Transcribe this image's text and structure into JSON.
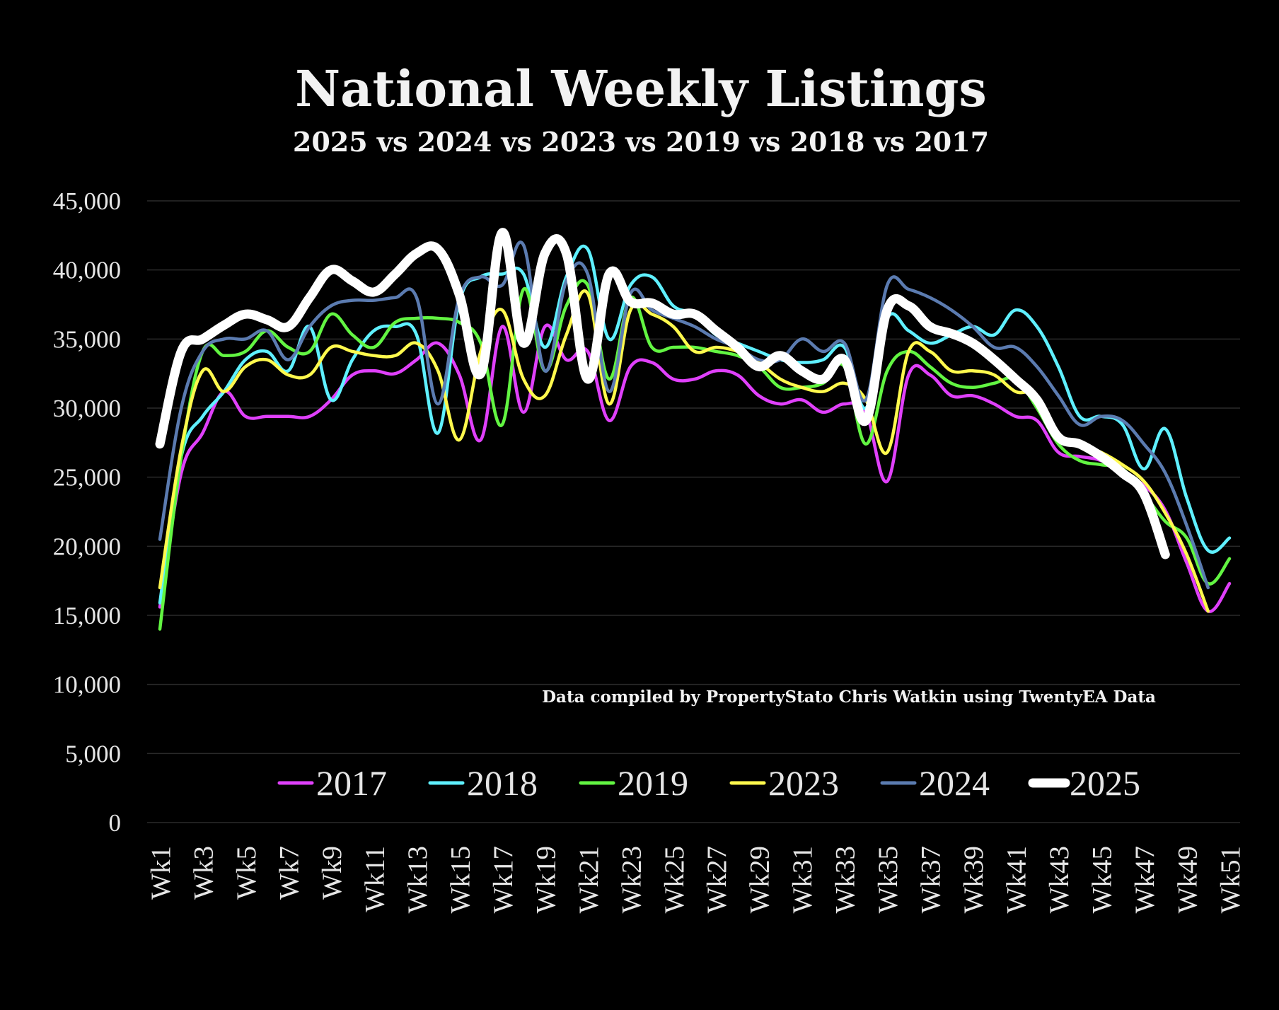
{
  "chart_data": {
    "type": "line",
    "title": "National Weekly Listings",
    "subtitle": "2025 vs 2024 vs 2023 vs 2019 vs 2018 vs 2017",
    "annotation": "Data compiled by PropertyStato Chris Watkin using TwentyEA Data",
    "categories": [
      "Wk1",
      null,
      "Wk3",
      null,
      "Wk5",
      null,
      "Wk7",
      null,
      "Wk9",
      null,
      "Wk11",
      null,
      "Wk13",
      null,
      "Wk15",
      null,
      "Wk17",
      null,
      "Wk19",
      null,
      "Wk21",
      null,
      "Wk23",
      null,
      "Wk25",
      null,
      "Wk27",
      null,
      "Wk29",
      null,
      "Wk31",
      null,
      "Wk33",
      null,
      "Wk35",
      null,
      "Wk37",
      null,
      "Wk39",
      null,
      "Wk41",
      null,
      "Wk43",
      null,
      "Wk45",
      null,
      "Wk47",
      null,
      "Wk49",
      null,
      "Wk51"
    ],
    "ylim": [
      0,
      45000
    ],
    "yticks": [
      0,
      {
        "value": 5000,
        "label": "5,000"
      },
      {
        "value": 10000,
        "label": "10,000"
      },
      {
        "value": 15000,
        "label": "15,000"
      },
      {
        "value": 20000,
        "label": "20,000"
      },
      {
        "value": 25000,
        "label": "25,000"
      },
      {
        "value": 30000,
        "label": "30,000"
      },
      {
        "value": 35000,
        "label": "35,000"
      },
      {
        "value": 40000,
        "label": "40,000"
      },
      {
        "value": 45000,
        "label": "45,000"
      }
    ],
    "grid": true,
    "legend": "bottom",
    "series": [
      {
        "name": "2017",
        "color": "#e040fb",
        "values": [
          15600,
          25300,
          28200,
          31200,
          29400,
          29400,
          29400,
          29400,
          30600,
          32400,
          32700,
          32500,
          33500,
          34700,
          32400,
          27700,
          35900,
          29700,
          35900,
          33500,
          34100,
          29100,
          33000,
          33300,
          32100,
          32100,
          32700,
          32400,
          30900,
          30300,
          30600,
          29700,
          30300,
          29700,
          24700,
          32400,
          32400,
          30900,
          30900,
          30300,
          29400,
          29100,
          26800,
          26500,
          26200,
          25300,
          24400,
          22600,
          18800,
          15300,
          17300
        ]
      },
      {
        "name": "2018",
        "color": "#5ff0ff",
        "values": [
          15900,
          26500,
          29400,
          31200,
          33500,
          34100,
          32700,
          35900,
          30600,
          33500,
          35600,
          35900,
          35300,
          28200,
          37700,
          39500,
          39700,
          39700,
          34400,
          39500,
          41500,
          35000,
          38900,
          39500,
          37400,
          36800,
          35300,
          34700,
          34100,
          33500,
          33300,
          33500,
          34400,
          30000,
          36500,
          35600,
          34700,
          35300,
          35900,
          35300,
          37100,
          35900,
          33000,
          29400,
          29400,
          28800,
          25600,
          28500,
          23500,
          19700,
          20600
        ]
      },
      {
        "name": "2019",
        "color": "#62f542",
        "values": [
          14000,
          26500,
          34100,
          33800,
          34100,
          35600,
          34400,
          34100,
          36800,
          35300,
          34400,
          36200,
          36500,
          36500,
          36200,
          34700,
          28800,
          38600,
          32700,
          37400,
          38900,
          32100,
          38000,
          34400,
          34400,
          34400,
          34100,
          33800,
          33000,
          31500,
          31500,
          31800,
          33000,
          27400,
          32700,
          34100,
          33000,
          31800,
          31500,
          31800,
          32100,
          30000,
          27400,
          26200,
          25900,
          25600,
          23800,
          21800,
          20600,
          17300,
          19100
        ]
      },
      {
        "name": "2023",
        "color": "#fff94d",
        "values": [
          17000,
          27100,
          32700,
          31200,
          33000,
          33500,
          32400,
          32400,
          34400,
          34100,
          33800,
          33800,
          34700,
          32700,
          27700,
          34100,
          37100,
          32100,
          30900,
          35300,
          38300,
          30300,
          37100,
          36800,
          35900,
          34100,
          34400,
          34100,
          33300,
          32100,
          31500,
          31200,
          31800,
          30600,
          26800,
          34100,
          34100,
          32700,
          32700,
          32400,
          31200,
          30900,
          27900,
          27400,
          26800,
          25900,
          24700,
          22400,
          19400,
          15300,
          null
        ]
      },
      {
        "name": "2024",
        "color": "#5b7bb0",
        "values": [
          20500,
          30000,
          34100,
          35000,
          35000,
          35600,
          33500,
          35900,
          37400,
          37800,
          37800,
          38000,
          38000,
          30300,
          38000,
          39500,
          38900,
          41800,
          32700,
          39200,
          39700,
          31200,
          38300,
          37100,
          36500,
          35900,
          35000,
          34400,
          33500,
          33500,
          35000,
          34100,
          34700,
          30600,
          38900,
          38600,
          38000,
          37100,
          35900,
          34400,
          34400,
          33000,
          30900,
          28800,
          29400,
          29100,
          27400,
          25300,
          21500,
          17000,
          null
        ]
      },
      {
        "name": "2025",
        "color": "#ffffff",
        "values": [
          27400,
          34100,
          35000,
          36000,
          36800,
          36400,
          35900,
          38000,
          40000,
          39200,
          38400,
          39700,
          41200,
          41500,
          38200,
          32500,
          42700,
          34700,
          41200,
          41200,
          32100,
          39700,
          37700,
          37600,
          36800,
          36800,
          35600,
          34400,
          33000,
          33800,
          32700,
          32100,
          33500,
          29100,
          37100,
          37400,
          35900,
          35400,
          34700,
          33500,
          32100,
          30600,
          27900,
          27400,
          26500,
          25300,
          23800,
          19400,
          null,
          null,
          null
        ]
      }
    ]
  }
}
